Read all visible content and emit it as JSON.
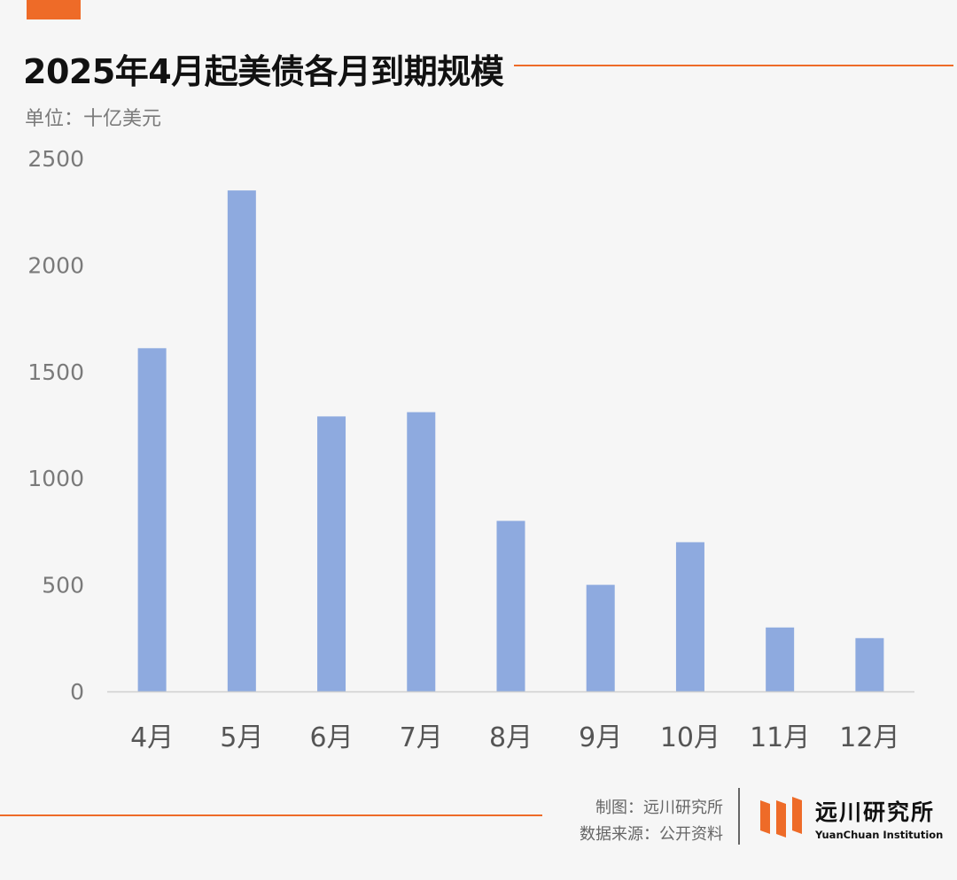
{
  "title": "2025年4月起美债各月到期规模",
  "unit_label": "单位：十亿美元",
  "chart_data": {
    "type": "bar",
    "categories": [
      "4月",
      "5月",
      "6月",
      "7月",
      "8月",
      "9月",
      "10月",
      "11月",
      "12月"
    ],
    "values": [
      1610,
      2350,
      1290,
      1310,
      800,
      500,
      700,
      300,
      250
    ],
    "y_ticks": [
      0,
      500,
      1000,
      1500,
      2000,
      2500
    ],
    "ylim": [
      0,
      2500
    ],
    "bar_color": "#8eaadf",
    "grid": false
  },
  "footer": {
    "credit_chart": "制图：远川研究所",
    "credit_source": "数据来源：公开资料",
    "logo_name": "远川研究所",
    "logo_name_en": "YuanChuan Institution"
  },
  "colors": {
    "accent": "#ee6b28",
    "bar": "#8eaadf"
  }
}
